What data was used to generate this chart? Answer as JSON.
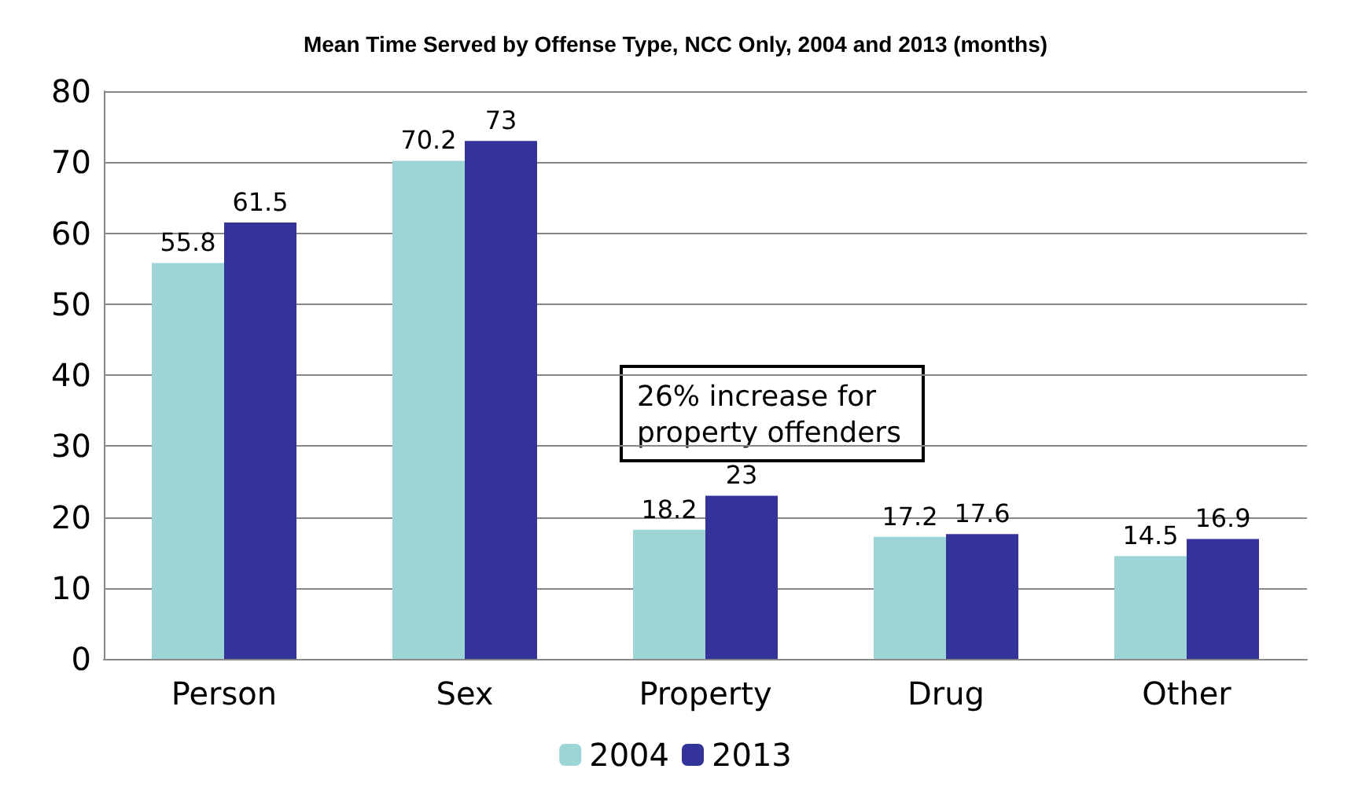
{
  "chart_data": {
    "type": "bar",
    "title": "Mean Time Served by Offense Type, NCC Only, 2004 and 2013 (months)",
    "categories": [
      "Person",
      "Sex",
      "Property",
      "Drug",
      "Other"
    ],
    "series": [
      {
        "name": "2004",
        "color": "#9dd5d6",
        "values": [
          55.8,
          70.2,
          18.2,
          17.2,
          14.5
        ]
      },
      {
        "name": "2013",
        "color": "#333399",
        "values": [
          61.5,
          73,
          23,
          17.6,
          16.9
        ]
      }
    ],
    "ylim": [
      0,
      80
    ],
    "yticks": [
      0,
      10,
      20,
      30,
      40,
      50,
      60,
      70,
      80
    ],
    "grid": "y",
    "legend": "bottom",
    "data_labels": true,
    "annotations": [
      "26% increase for property offenders"
    ]
  }
}
